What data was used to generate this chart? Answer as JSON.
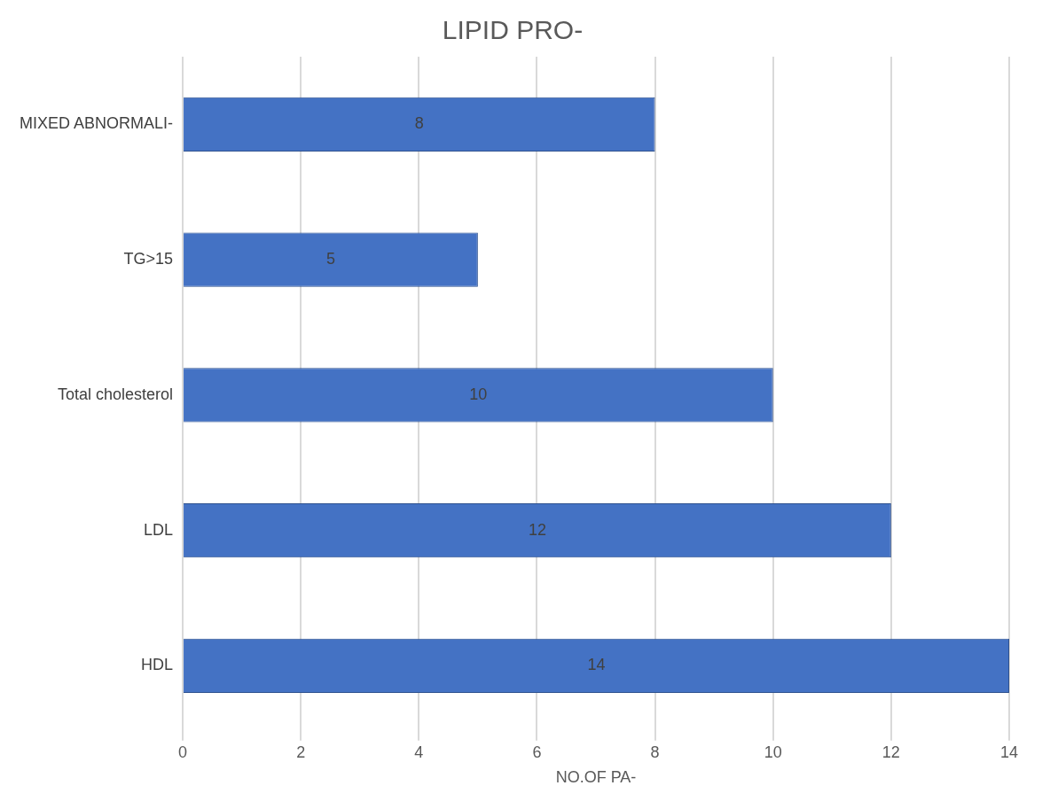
{
  "chart_data": {
    "type": "bar",
    "orientation": "horizontal",
    "title": "LIPID PRO-",
    "xlabel": "NO.OF PA-",
    "categories": [
      "MIXED ABNORMALI-",
      "TG>15",
      "Total cholesterol",
      "LDL",
      "HDL"
    ],
    "values": [
      8,
      5,
      10,
      12,
      14
    ],
    "color": "#4472c4",
    "xlim": [
      0,
      14
    ],
    "xticks": [
      0,
      2,
      4,
      6,
      8,
      10,
      12,
      14
    ],
    "grid": "x",
    "legend": false,
    "data_labels": true
  }
}
